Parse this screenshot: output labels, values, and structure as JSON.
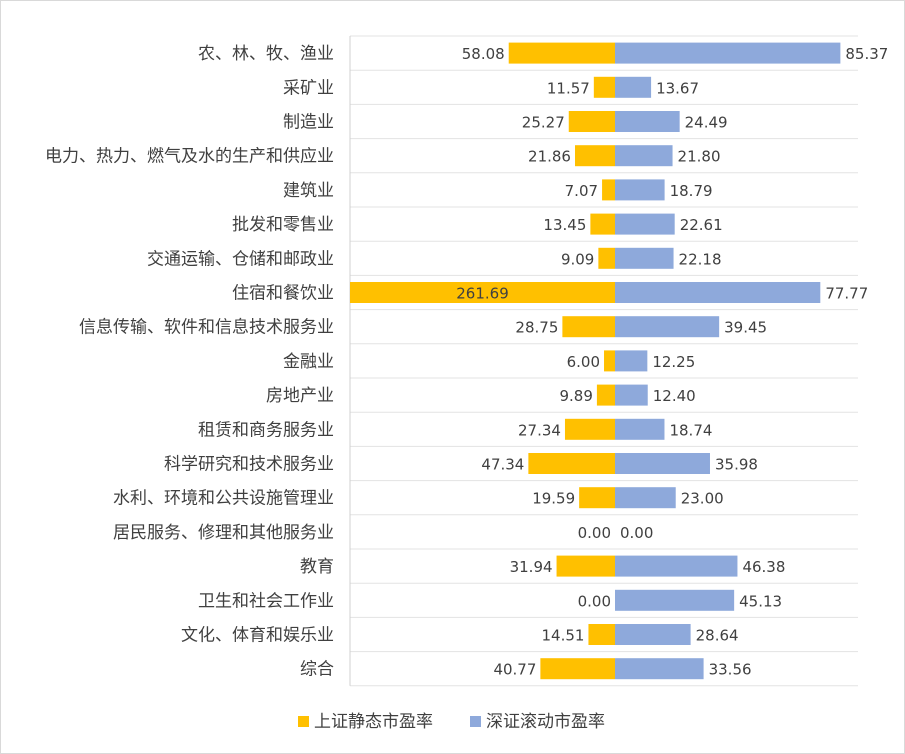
{
  "chart_data": {
    "type": "bar",
    "orientation": "horizontal-diverging",
    "categories": [
      "农、林、牧、渔业",
      "采矿业",
      "制造业",
      "电力、热力、燃气及水的生产和供应业",
      "建筑业",
      "批发和零售业",
      "交通运输、仓储和邮政业",
      "住宿和餐饮业",
      "信息传输、软件和信息技术服务业",
      "金融业",
      "房地产业",
      "租赁和商务服务业",
      "科学研究和技术服务业",
      "水利、环境和公共设施管理业",
      "居民服务、修理和其他服务业",
      "教育",
      "卫生和社会工作业",
      "文化、体育和娱乐业",
      "综合"
    ],
    "series": [
      {
        "name": "上证静态市盈率",
        "color": "#FFC000",
        "direction": "left",
        "values": [
          58.08,
          11.57,
          25.27,
          21.86,
          7.07,
          13.45,
          9.09,
          261.69,
          28.75,
          6.0,
          9.89,
          27.34,
          47.34,
          19.59,
          0.0,
          31.94,
          0.0,
          14.51,
          40.77
        ],
        "labels": [
          "58.08",
          "11.57",
          "25.27",
          "21.86",
          "7.07",
          "13.45",
          "9.09",
          "261.69",
          "28.75",
          "6.00",
          "9.89",
          "27.34",
          "47.34",
          "19.59",
          "0.00",
          "31.94",
          "0.00",
          "14.51",
          "40.77"
        ]
      },
      {
        "name": "深证滚动市盈率",
        "color": "#8EA9DB",
        "direction": "right",
        "values": [
          85.37,
          13.67,
          24.49,
          21.8,
          18.79,
          22.61,
          22.18,
          77.77,
          39.45,
          12.25,
          12.4,
          18.74,
          35.98,
          23.0,
          0.0,
          46.38,
          45.13,
          28.64,
          33.56
        ],
        "labels": [
          "85.37",
          "13.67",
          "24.49",
          "21.80",
          "18.79",
          "22.61",
          "22.18",
          "77.77",
          "39.45",
          "12.25",
          "12.40",
          "18.74",
          "35.98",
          "23.00",
          "0.00",
          "46.38",
          "45.13",
          "28.64",
          "33.56"
        ]
      }
    ],
    "left_bar_cap": 100,
    "grid": true,
    "legend_position": "bottom"
  }
}
